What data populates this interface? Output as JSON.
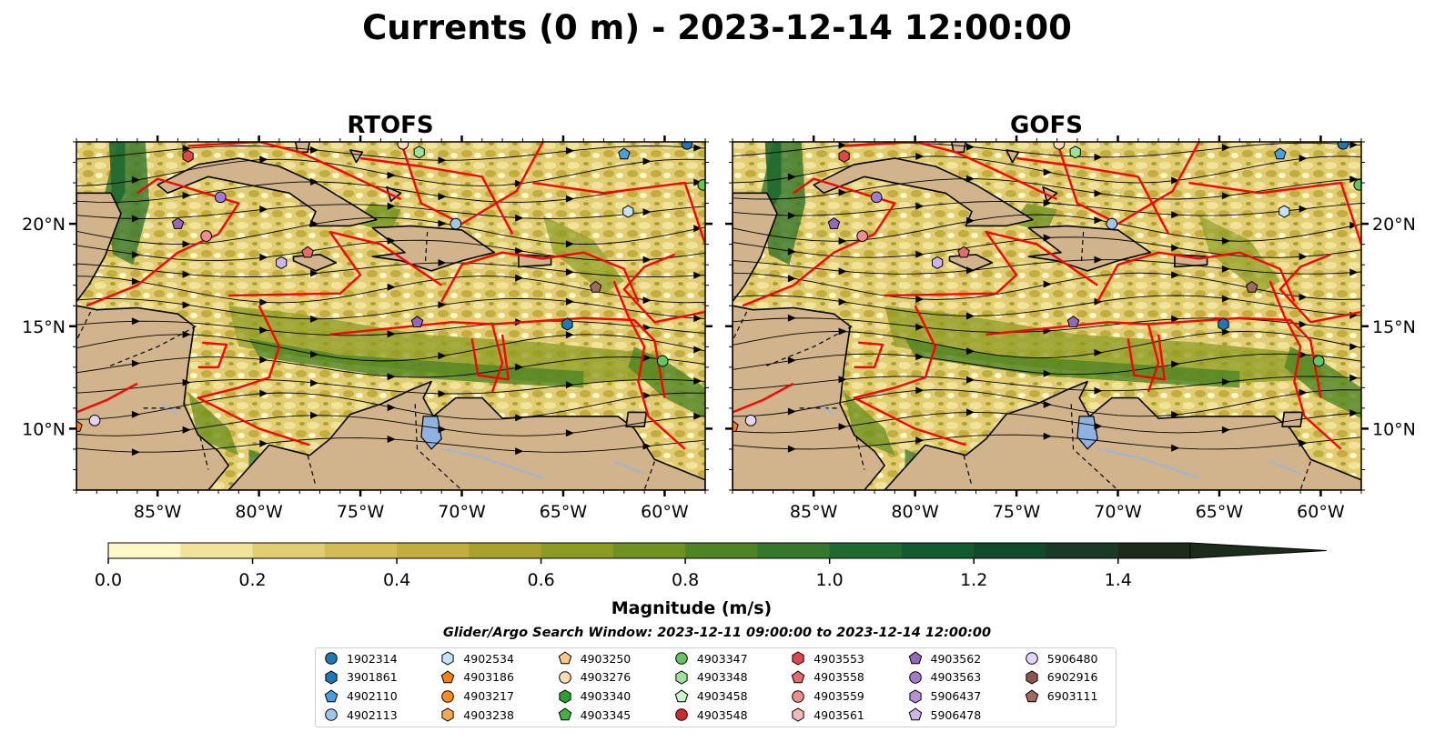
{
  "figure": {
    "title": "Currents (0 m) - 2023-12-14 12:00:00",
    "subtitle": "Glider/Argo Search Window: 2023-12-11 09:00:00 to 2023-12-14 12:00:00"
  },
  "chart_data": {
    "type": "heatmap",
    "panels": [
      {
        "title": "RTOFS",
        "lat_labels_side": "left"
      },
      {
        "title": "GOFS",
        "lat_labels_side": "right"
      }
    ],
    "xlim": [
      -89,
      -58
    ],
    "ylim": [
      7,
      24
    ],
    "xticks": [
      -85,
      -80,
      -75,
      -70,
      -65,
      -60
    ],
    "xtick_labels": [
      "85°W",
      "80°W",
      "75°W",
      "70°W",
      "65°W",
      "60°W"
    ],
    "yticks": [
      10,
      15,
      20
    ],
    "ytick_labels": [
      "10°N",
      "15°N",
      "20°N"
    ],
    "colorbar": {
      "label": "Magnitude (m/s)",
      "vmin": 0.0,
      "vmax": 1.5,
      "extend": "max",
      "ticks": [
        0.0,
        0.2,
        0.4,
        0.6,
        0.8,
        1.0,
        1.2,
        1.4
      ],
      "tick_labels": [
        "0.0",
        "0.2",
        "0.4",
        "0.6",
        "0.8",
        "1.0",
        "1.2",
        "1.4"
      ],
      "colors": [
        "#fdf8c6",
        "#f1e39a",
        "#e2cd72",
        "#d4bb55",
        "#c2ae3e",
        "#a8a22c",
        "#8c9b22",
        "#6f911f",
        "#4f8424",
        "#35772b",
        "#1f6a30",
        "#125a30",
        "#124b2a",
        "#193a24",
        "#1b2c1a"
      ]
    },
    "land_color": "#d2b48c",
    "lake_color": "#8fb3e0",
    "boundary_color": "#ff0000",
    "legend": {
      "placement": "bottom-center",
      "columns": 7,
      "entries": [
        {
          "id": "1902314",
          "marker": "circle",
          "color": "#1f77b4"
        },
        {
          "id": "3901861",
          "marker": "hexagon",
          "color": "#1f77b4"
        },
        {
          "id": "4902110",
          "marker": "pentagon",
          "color": "#4a9ee0"
        },
        {
          "id": "4902113",
          "marker": "circle",
          "color": "#9ec7ec"
        },
        {
          "id": "4902534",
          "marker": "hexagon",
          "color": "#c6e2f7"
        },
        {
          "id": "4903186",
          "marker": "pentagon",
          "color": "#ff7f0e"
        },
        {
          "id": "4903217",
          "marker": "circle",
          "color": "#ff8c1a"
        },
        {
          "id": "4903238",
          "marker": "hexagon",
          "color": "#ffa550"
        },
        {
          "id": "4903250",
          "marker": "pentagon",
          "color": "#ffc58a"
        },
        {
          "id": "4903276",
          "marker": "circle",
          "color": "#ffdcb5"
        },
        {
          "id": "4903340",
          "marker": "hexagon",
          "color": "#2ca02c"
        },
        {
          "id": "4903345",
          "marker": "pentagon",
          "color": "#3fb43f"
        },
        {
          "id": "4903347",
          "marker": "circle",
          "color": "#62c462"
        },
        {
          "id": "4903348",
          "marker": "hexagon",
          "color": "#9be39b"
        },
        {
          "id": "4903458",
          "marker": "pentagon",
          "color": "#caf5ca"
        },
        {
          "id": "4903548",
          "marker": "circle",
          "color": "#d62728"
        },
        {
          "id": "4903553",
          "marker": "hexagon",
          "color": "#e04848"
        },
        {
          "id": "4903558",
          "marker": "pentagon",
          "color": "#e86a6a"
        },
        {
          "id": "4903559",
          "marker": "circle",
          "color": "#f08e8e"
        },
        {
          "id": "4903561",
          "marker": "hexagon",
          "color": "#f8b8b8"
        },
        {
          "id": "4903562",
          "marker": "pentagon",
          "color": "#9467bd"
        },
        {
          "id": "4903563",
          "marker": "circle",
          "color": "#a47bcc"
        },
        {
          "id": "5906437",
          "marker": "hexagon",
          "color": "#b592d8"
        },
        {
          "id": "5906478",
          "marker": "pentagon",
          "color": "#cdb4ec"
        },
        {
          "id": "5906480",
          "marker": "circle",
          "color": "#e5d4f7"
        },
        {
          "id": "6902916",
          "marker": "hexagon",
          "color": "#8c564b"
        },
        {
          "id": "6903111",
          "marker": "pentagon",
          "color": "#a06a5c"
        }
      ]
    },
    "float_positions": [
      {
        "lon": -83.5,
        "lat": 23.3,
        "marker": "hexagon",
        "color": "#e04848"
      },
      {
        "lon": -81.9,
        "lat": 21.3,
        "marker": "circle",
        "color": "#a47bcc"
      },
      {
        "lon": -84.0,
        "lat": 20.0,
        "marker": "pentagon",
        "color": "#9467bd"
      },
      {
        "lon": -82.6,
        "lat": 19.4,
        "marker": "circle",
        "color": "#f08e8e"
      },
      {
        "lon": -78.9,
        "lat": 18.1,
        "marker": "hexagon",
        "color": "#cdb4ec"
      },
      {
        "lon": -77.6,
        "lat": 18.6,
        "marker": "pentagon",
        "color": "#e86a6a"
      },
      {
        "lon": -72.9,
        "lat": 23.9,
        "marker": "circle",
        "color": "#ffdcb5"
      },
      {
        "lon": -72.1,
        "lat": 23.5,
        "marker": "hexagon",
        "color": "#9be39b"
      },
      {
        "lon": -70.3,
        "lat": 20.0,
        "marker": "circle",
        "color": "#9ec7ec"
      },
      {
        "lon": -72.2,
        "lat": 15.2,
        "marker": "pentagon",
        "color": "#9467bd"
      },
      {
        "lon": -64.8,
        "lat": 15.1,
        "marker": "hexagon",
        "color": "#1f77b4"
      },
      {
        "lon": -62.0,
        "lat": 23.4,
        "marker": "pentagon",
        "color": "#4a9ee0"
      },
      {
        "lon": -58.9,
        "lat": 23.9,
        "marker": "circle",
        "color": "#1f77b4"
      },
      {
        "lon": -61.8,
        "lat": 20.6,
        "marker": "hexagon",
        "color": "#c6e2f7"
      },
      {
        "lon": -58.1,
        "lat": 21.9,
        "marker": "circle",
        "color": "#62c462"
      },
      {
        "lon": -63.4,
        "lat": 16.9,
        "marker": "pentagon",
        "color": "#a06a5c"
      },
      {
        "lon": -60.1,
        "lat": 13.3,
        "marker": "circle",
        "color": "#62c462"
      },
      {
        "lon": -89.0,
        "lat": 10.1,
        "marker": "pentagon",
        "color": "#ff7f0e"
      },
      {
        "lon": -88.1,
        "lat": 10.4,
        "marker": "circle",
        "color": "#e5d4f7"
      }
    ]
  }
}
